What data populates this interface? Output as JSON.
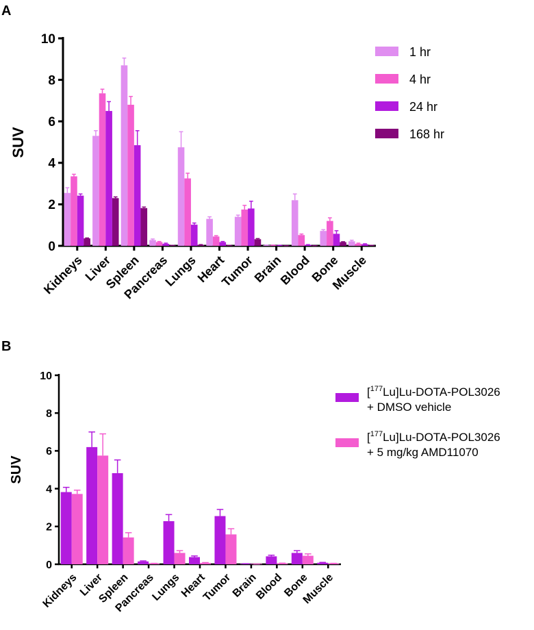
{
  "chart_data": [
    {
      "panel_label": "A",
      "type": "bar",
      "ylabel": "SUV",
      "ylim": [
        0,
        10
      ],
      "yticks": [
        "0",
        "2",
        "4",
        "6",
        "8",
        "10"
      ],
      "categories": [
        "Kidneys",
        "Liver",
        "Spleen",
        "Pancreas",
        "Lungs",
        "Heart",
        "Tumor",
        "Brain",
        "Blood",
        "Bone",
        "Muscle"
      ],
      "legend_position": "top-right",
      "series": [
        {
          "name": "1 hr",
          "color": "#e08ef0",
          "values": [
            2.55,
            5.3,
            8.7,
            0.28,
            4.75,
            1.3,
            1.4,
            0.03,
            2.2,
            0.72,
            0.22
          ],
          "errors": [
            0.25,
            0.25,
            0.35,
            0.05,
            0.75,
            0.1,
            0.08,
            0.01,
            0.3,
            0.06,
            0.05
          ]
        },
        {
          "name": "4 hr",
          "color": "#f45dcf",
          "values": [
            3.35,
            7.35,
            6.8,
            0.18,
            3.25,
            0.45,
            1.75,
            0.03,
            0.52,
            1.2,
            0.1
          ],
          "errors": [
            0.1,
            0.2,
            0.4,
            0.03,
            0.25,
            0.04,
            0.2,
            0.01,
            0.05,
            0.15,
            0.03
          ]
        },
        {
          "name": "24 hr",
          "color": "#b21bde",
          "values": [
            2.42,
            6.5,
            4.85,
            0.1,
            1.02,
            0.18,
            1.8,
            0.02,
            0.05,
            0.58,
            0.08
          ],
          "errors": [
            0.08,
            0.45,
            0.7,
            0.03,
            0.08,
            0.03,
            0.35,
            0.01,
            0.01,
            0.15,
            0.02
          ]
        },
        {
          "name": "168 hr",
          "color": "#85087a",
          "values": [
            0.36,
            2.3,
            1.82,
            0.02,
            0.05,
            0.02,
            0.32,
            0.01,
            0.01,
            0.18,
            0.02
          ],
          "errors": [
            0.02,
            0.06,
            0.05,
            0.005,
            0.01,
            0.005,
            0.03,
            0.003,
            0.003,
            0.02,
            0.005
          ]
        }
      ]
    },
    {
      "panel_label": "B",
      "type": "bar",
      "ylabel": "SUV",
      "ylim": [
        0,
        10
      ],
      "yticks": [
        "0",
        "2",
        "4",
        "6",
        "8",
        "10"
      ],
      "categories": [
        "Kidneys",
        "Liver",
        "Spleen",
        "Pancreas",
        "Lungs",
        "Heart",
        "Tumor",
        "Brain",
        "Blood",
        "Bone",
        "Muscle"
      ],
      "legend_position": "top-right",
      "series": [
        {
          "name_sup": "177",
          "name_line1": "Lu]Lu-DOTA-POL3026",
          "name_line2": "+ DMSO vehicle",
          "color": "#b21bde",
          "values": [
            3.82,
            6.2,
            4.82,
            0.15,
            2.28,
            0.38,
            2.55,
            0.02,
            0.42,
            0.6,
            0.08
          ],
          "errors": [
            0.25,
            0.8,
            0.7,
            0.03,
            0.35,
            0.06,
            0.35,
            0.01,
            0.06,
            0.12,
            0.02
          ]
        },
        {
          "name_sup": "177",
          "name_line1": "Lu]Lu-DOTA-POL3026",
          "name_line2": "+ 5 mg/kg AMD11070",
          "color": "#f45dcf",
          "values": [
            3.72,
            5.75,
            1.42,
            0.04,
            0.6,
            0.07,
            1.58,
            0.01,
            0.05,
            0.45,
            0.04
          ],
          "errors": [
            0.2,
            1.15,
            0.25,
            0.01,
            0.12,
            0.02,
            0.3,
            0.005,
            0.01,
            0.1,
            0.01
          ]
        }
      ]
    }
  ]
}
